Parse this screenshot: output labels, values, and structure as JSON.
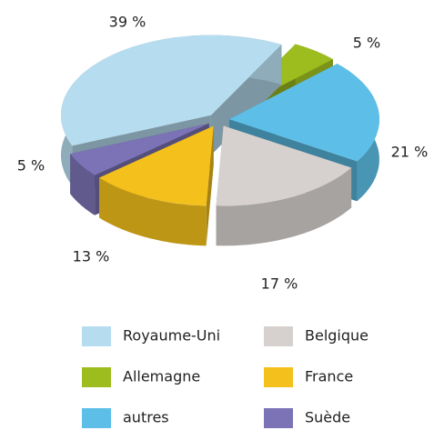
{
  "chart_data": {
    "type": "pie3d",
    "series": [
      {
        "name": "Royaume-Uni",
        "color": "#b6dcef",
        "value": 39,
        "value_label": "39 %"
      },
      {
        "name": "Allemagne",
        "color": "#9dbd1f",
        "value": 5,
        "value_label": "5 %"
      },
      {
        "name": "autres",
        "color": "#5dbfe7",
        "value": 21,
        "value_label": "21 %"
      },
      {
        "name": "Belgique",
        "color": "#d6d1ce",
        "value": 17,
        "value_label": "17 %"
      },
      {
        "name": "France",
        "color": "#f4c01b",
        "value": 13,
        "value_label": "13 %"
      },
      {
        "name": "Suède",
        "color": "#7b73b5",
        "value": 5,
        "value_label": "5 %"
      }
    ]
  }
}
